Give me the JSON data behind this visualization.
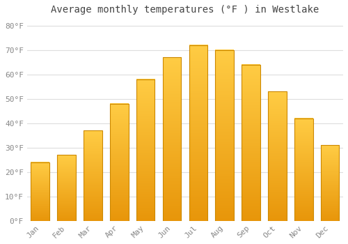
{
  "title": "Average monthly temperatures (°F ) in Westlake",
  "months": [
    "Jan",
    "Feb",
    "Mar",
    "Apr",
    "May",
    "Jun",
    "Jul",
    "Aug",
    "Sep",
    "Oct",
    "Nov",
    "Dec"
  ],
  "values": [
    24,
    27,
    37,
    48,
    58,
    67,
    72,
    70,
    64,
    53,
    42,
    31
  ],
  "bar_color_bottom": "#E8960A",
  "bar_color_top": "#FFCC44",
  "bar_edge_color": "#CC8800",
  "background_color": "#FFFFFF",
  "grid_color": "#DDDDDD",
  "ylim": [
    0,
    83
  ],
  "yticks": [
    0,
    10,
    20,
    30,
    40,
    50,
    60,
    70,
    80
  ],
  "ytick_labels": [
    "0°F",
    "10°F",
    "20°F",
    "30°F",
    "40°F",
    "50°F",
    "60°F",
    "70°F",
    "80°F"
  ],
  "title_fontsize": 10,
  "tick_fontsize": 8,
  "font_family": "monospace",
  "tick_color": "#888888",
  "title_color": "#444444",
  "bar_width": 0.7
}
